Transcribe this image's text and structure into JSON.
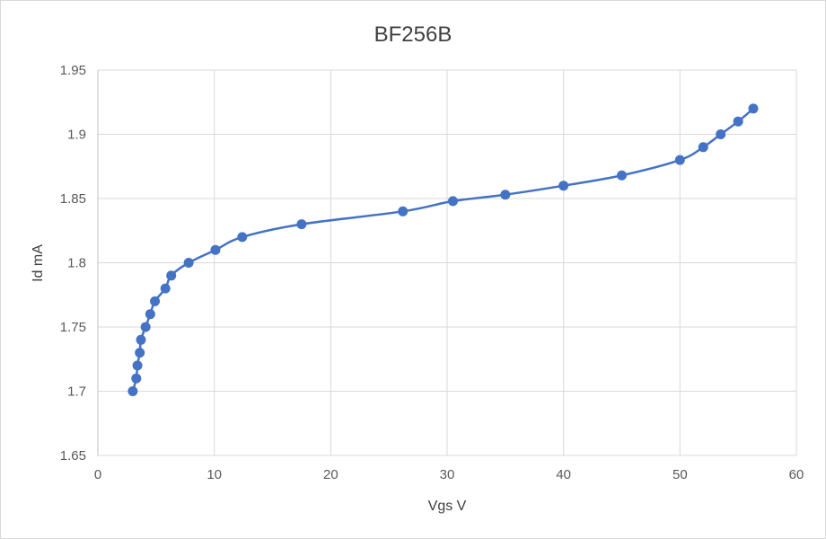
{
  "chart_data": {
    "type": "scatter",
    "title": "BF256B",
    "xlabel": "Vgs V",
    "ylabel": "Id mA",
    "xlim": [
      0,
      60
    ],
    "ylim": [
      1.65,
      1.95
    ],
    "xticks": [
      0,
      10,
      20,
      30,
      40,
      50,
      60
    ],
    "yticks": [
      1.65,
      1.7,
      1.75,
      1.8,
      1.85,
      1.9,
      1.95
    ],
    "xtick_labels": [
      "0",
      "10",
      "20",
      "30",
      "40",
      "50",
      "60"
    ],
    "ytick_labels": [
      "1.65",
      "1.7",
      "1.75",
      "1.8",
      "1.85",
      "1.9",
      "1.95"
    ],
    "grid": true,
    "legend": "none",
    "smooth_line": true,
    "series": [
      {
        "color": "#4472C4",
        "x": [
          3.0,
          3.3,
          3.4,
          3.6,
          3.7,
          4.1,
          4.5,
          4.9,
          5.8,
          6.3,
          7.8,
          10.1,
          12.4,
          17.5,
          26.2,
          30.5,
          35.0,
          40.0,
          45.0,
          50.0,
          52.0,
          53.5,
          55.0,
          56.3
        ],
        "y": [
          1.7,
          1.71,
          1.72,
          1.73,
          1.74,
          1.75,
          1.76,
          1.77,
          1.78,
          1.79,
          1.8,
          1.81,
          1.82,
          1.83,
          1.84,
          1.848,
          1.853,
          1.86,
          1.868,
          1.88,
          1.89,
          1.9,
          1.91,
          1.92
        ]
      }
    ]
  }
}
